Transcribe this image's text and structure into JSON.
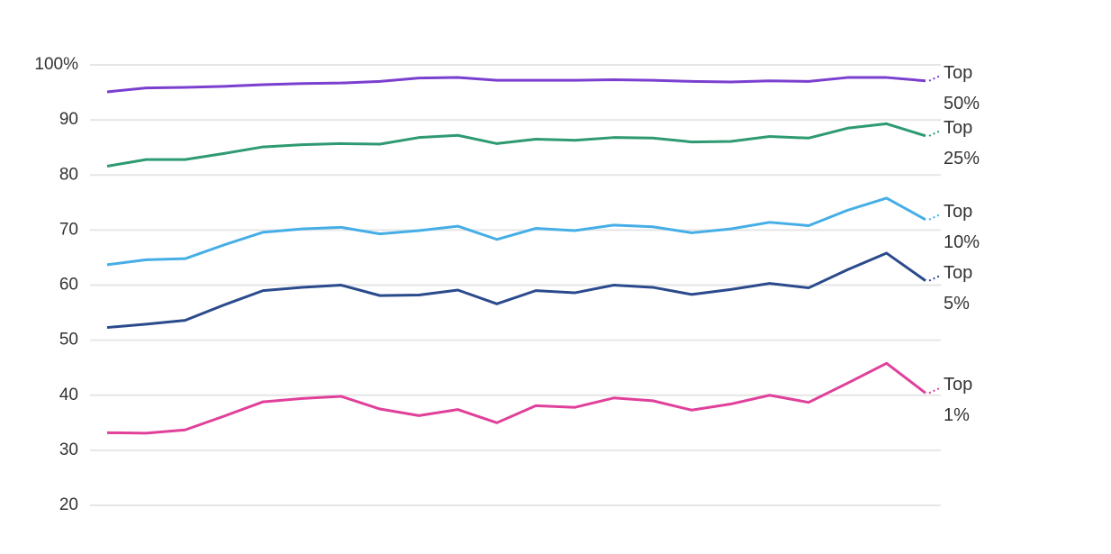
{
  "chart_data": {
    "type": "line",
    "categories": [
      null,
      null,
      null,
      null,
      null,
      null,
      null,
      null,
      null,
      null,
      null,
      null,
      null,
      null,
      null,
      null,
      null,
      null,
      null,
      null,
      null,
      null
    ],
    "ylim": [
      20,
      100
    ],
    "yticks": [
      20,
      30,
      40,
      50,
      60,
      70,
      80,
      90,
      {
        "value": 100,
        "label": "100%"
      }
    ],
    "grid": true,
    "series": [
      {
        "name": "Top 50%",
        "color": "#7b3fd0",
        "values": [
          95.1,
          95.8,
          95.9,
          96.1,
          96.4,
          96.6,
          96.7,
          97.0,
          97.6,
          97.7,
          97.2,
          97.2,
          97.2,
          97.3,
          97.2,
          97.0,
          96.9,
          97.1,
          97.0,
          97.7,
          97.7,
          97.1
        ]
      },
      {
        "name": "Top 25%",
        "color": "#2e9a72",
        "values": [
          81.6,
          82.8,
          82.8,
          83.9,
          85.1,
          85.5,
          85.7,
          85.6,
          86.8,
          87.2,
          85.7,
          86.5,
          86.3,
          86.8,
          86.7,
          86.0,
          86.1,
          87.0,
          86.7,
          88.5,
          89.3,
          87.1
        ]
      },
      {
        "name": "Top 10%",
        "color": "#45aee6",
        "values": [
          63.7,
          64.6,
          64.8,
          67.3,
          69.6,
          70.2,
          70.5,
          69.3,
          69.9,
          70.7,
          68.3,
          70.3,
          69.9,
          70.9,
          70.6,
          69.5,
          70.2,
          71.4,
          70.8,
          73.6,
          75.8,
          71.9
        ]
      },
      {
        "name": "Top 5%",
        "color": "#2a4a8c",
        "values": [
          52.3,
          52.9,
          53.6,
          56.4,
          59.0,
          59.6,
          60.0,
          58.1,
          58.2,
          59.1,
          56.6,
          59.0,
          58.6,
          60.0,
          59.6,
          58.3,
          59.2,
          60.3,
          59.5,
          62.8,
          65.8,
          60.8
        ]
      },
      {
        "name": "Top 1%",
        "color": "#e0409a",
        "values": [
          33.2,
          33.1,
          33.7,
          36.2,
          38.8,
          39.4,
          39.8,
          37.5,
          36.3,
          37.4,
          35.0,
          38.1,
          37.8,
          39.5,
          39.0,
          37.3,
          38.4,
          40.0,
          38.7,
          42.2,
          45.8,
          40.4
        ]
      }
    ]
  }
}
